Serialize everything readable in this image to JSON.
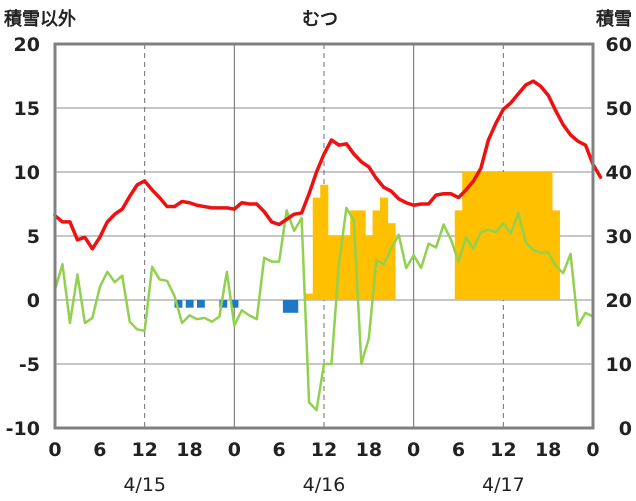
{
  "chart_data": {
    "type": "line",
    "title": "むつ",
    "ylabel_left": "積雪以外",
    "ylabel_right": "積雪",
    "ylim_left": [
      -10,
      20
    ],
    "yticks_left": [
      -10,
      -5,
      0,
      5,
      10,
      15,
      20
    ],
    "ylim_right": [
      0,
      60
    ],
    "yticks_right": [
      0,
      10,
      20,
      30,
      40,
      50,
      60
    ],
    "xlim_hours": [
      0,
      72
    ],
    "xtick_labels": [
      "0",
      "6",
      "12",
      "18",
      "0",
      "6",
      "12",
      "18",
      "0",
      "6",
      "12",
      "18",
      "0"
    ],
    "date_labels": [
      "4/15",
      "4/16",
      "4/17"
    ],
    "grid": true,
    "colors": {
      "temperature": "#ee1111",
      "snow_depth": "#ffc000",
      "precipitation": "#1f78c4",
      "wind": "#92d050",
      "baseline": "#7030a0"
    },
    "series": [
      {
        "key": "temperature",
        "axis": "left",
        "values": [
          6.6,
          6.1,
          6.1,
          4.7,
          4.9,
          4.0,
          4.9,
          6.1,
          6.7,
          7.1,
          8.1,
          9.0,
          9.3,
          8.6,
          8.0,
          7.3,
          7.3,
          7.7,
          7.6,
          7.4,
          7.3,
          7.2,
          7.2,
          7.2,
          7.1,
          7.6,
          7.5,
          7.5,
          6.9,
          6.1,
          5.9,
          6.3,
          6.7,
          6.8,
          8.3,
          10.0,
          11.4,
          12.5,
          12.1,
          12.2,
          11.4,
          10.8,
          10.4,
          9.5,
          8.8,
          8.5,
          7.9,
          7.6,
          7.4,
          7.5,
          7.5,
          8.2,
          8.3,
          8.3,
          8.0,
          8.6,
          9.3,
          10.3,
          12.5,
          13.8,
          14.9,
          15.4,
          16.1,
          16.8,
          17.1,
          16.7,
          16.0,
          14.8,
          13.7,
          12.9,
          12.4,
          12.1,
          10.6,
          9.6
        ]
      },
      {
        "key": "wind",
        "axis": "left",
        "values": [
          0.8,
          2.8,
          -1.8,
          2.0,
          -1.8,
          -1.4,
          1.0,
          2.2,
          1.4,
          1.9,
          -1.7,
          -2.3,
          -2.4,
          2.6,
          1.6,
          1.5,
          0.3,
          -1.8,
          -1.2,
          -1.5,
          -1.4,
          -1.7,
          -1.3,
          2.2,
          -2.0,
          -0.8,
          -1.2,
          -1.5,
          3.3,
          3.0,
          3.0,
          7.0,
          5.4,
          6.4,
          -8.0,
          -8.6,
          -5.0,
          -5.0,
          2.8,
          7.2,
          6.2,
          -5.0,
          -3.0,
          3.1,
          2.8,
          4.0,
          5.1,
          2.5,
          3.5,
          2.5,
          4.4,
          4.1,
          5.9,
          4.7,
          3.0,
          4.9,
          4.0,
          5.3,
          5.5,
          5.3,
          6.0,
          5.2,
          6.8,
          4.5,
          3.9,
          3.7,
          3.7,
          2.7,
          2.1,
          3.6,
          -2.0,
          -1.0,
          -1.3
        ]
      },
      {
        "key": "precipitation",
        "axis": "left",
        "bars": [
          {
            "hour": 16.5,
            "value": -0.6
          },
          {
            "hour": 18.0,
            "value": -0.6
          },
          {
            "hour": 19.5,
            "value": -0.6
          },
          {
            "hour": 22.5,
            "value": -0.6
          },
          {
            "hour": 24.0,
            "value": -0.6
          },
          {
            "hour": 31.0,
            "value": -1.0
          },
          {
            "hour": 32.0,
            "value": -1.0
          }
        ]
      },
      {
        "key": "snow_depth",
        "axis": "right",
        "bars": [
          {
            "hour": 34,
            "value": 21
          },
          {
            "hour": 35,
            "value": 36
          },
          {
            "hour": 36,
            "value": 38
          },
          {
            "hour": 37,
            "value": 30
          },
          {
            "hour": 38,
            "value": 30
          },
          {
            "hour": 39,
            "value": 30
          },
          {
            "hour": 40,
            "value": 34
          },
          {
            "hour": 41,
            "value": 34
          },
          {
            "hour": 42,
            "value": 30
          },
          {
            "hour": 43,
            "value": 34
          },
          {
            "hour": 44,
            "value": 36
          },
          {
            "hour": 45,
            "value": 32
          },
          {
            "hour": 54,
            "value": 34
          },
          {
            "hour": 55,
            "value": 40
          },
          {
            "hour": 56,
            "value": 40
          },
          {
            "hour": 57,
            "value": 40
          },
          {
            "hour": 58,
            "value": 40
          },
          {
            "hour": 59,
            "value": 40
          },
          {
            "hour": 60,
            "value": 40
          },
          {
            "hour": 61,
            "value": 40
          },
          {
            "hour": 62,
            "value": 40
          },
          {
            "hour": 63,
            "value": 40
          },
          {
            "hour": 64,
            "value": 40
          },
          {
            "hour": 65,
            "value": 40
          },
          {
            "hour": 66,
            "value": 40
          },
          {
            "hour": 67,
            "value": 34
          }
        ]
      },
      {
        "key": "baseline",
        "axis": "left",
        "values": [
          -10,
          -10
        ]
      }
    ]
  }
}
